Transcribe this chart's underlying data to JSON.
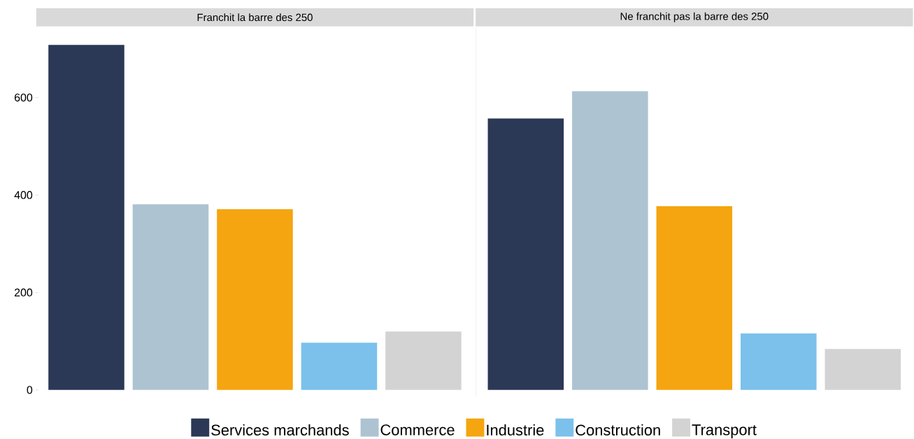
{
  "chart_data": {
    "type": "bar",
    "categories": [
      "Franchit la barre des 250",
      "Ne franchit pas la barre des 250"
    ],
    "ylim": [
      -14,
      743
    ],
    "yticks": [
      0,
      200,
      400,
      600
    ],
    "legend": "bottom",
    "series": [
      {
        "name": "Services marchands",
        "color": "#2b3856",
        "values": [
          708,
          557
        ]
      },
      {
        "name": "Commerce",
        "color": "#adc3d1",
        "values": [
          381,
          613
        ]
      },
      {
        "name": "Industrie",
        "color": "#f5a50f",
        "values": [
          371,
          377
        ]
      },
      {
        "name": "Construction",
        "color": "#7bc1ec",
        "values": [
          97,
          116
        ]
      },
      {
        "name": "Transport",
        "color": "#d3d3d3",
        "values": [
          120,
          84
        ]
      }
    ]
  }
}
